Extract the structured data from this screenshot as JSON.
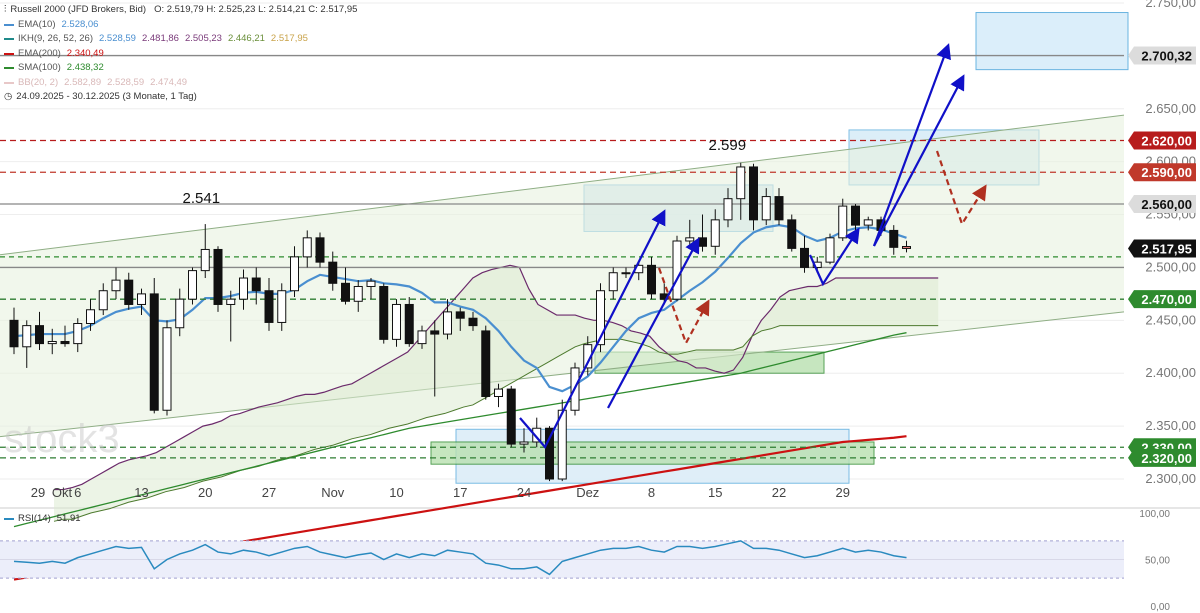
{
  "header": {
    "symbol": "Russell 2000 (JFD Brokers, Bid)",
    "ohlc": "O: 2.519,79  H: 2.525,23  L: 2.514,21  C: 2.517,95",
    "period": "24.09.2025 - 30.12.2025  (3 Monate, 1 Tag)",
    "indicators": [
      {
        "label": "EMA(10)",
        "values": [
          "2.528,06"
        ],
        "color": "#4a8fd0"
      },
      {
        "label": "IKH(9, 26, 52, 26)",
        "values": [
          "2.528,59",
          "2.481,86",
          "2.505,23",
          "2.446,21",
          "2.517,95"
        ],
        "color": "#1f8a8a"
      },
      {
        "label": "EMA(200)",
        "values": [
          "2.340,49"
        ],
        "color": "#cc1111"
      },
      {
        "label": "SMA(100)",
        "values": [
          "2.438,32"
        ],
        "color": "#2e8b2e"
      },
      {
        "label": "BB(20, 2)",
        "values": [
          "2.582,89",
          "2.528,59",
          "2.474,49"
        ],
        "color": "#e8c8c8"
      }
    ]
  },
  "watermark": "stock3",
  "chart_data": {
    "type": "candlestick",
    "y_axis_ticks": [
      "2.750,00",
      "2.700,00",
      "2.650,00",
      "2.600,00",
      "2.550,00",
      "2.500,00",
      "2.450,00",
      "2.400,00",
      "2.350,00",
      "2.300,00"
    ],
    "y_tick_values": [
      2750,
      2700,
      2650,
      2600,
      2550,
      2500,
      2450,
      2400,
      2350,
      2300
    ],
    "ylim": [
      2280,
      2758
    ],
    "x_axis_ticks": [
      "29",
      "Okt",
      "6",
      "13",
      "20",
      "27",
      "Nov",
      "10",
      "17",
      "24",
      "Dez",
      "8",
      "15",
      "22",
      "29"
    ],
    "x_tick_index": [
      0,
      1,
      5,
      10,
      15,
      20,
      25,
      30,
      35,
      40,
      45,
      50,
      55,
      60,
      65
    ],
    "annotations": [
      {
        "text": "2.541",
        "index": 14
      },
      {
        "text": "2.599",
        "index": 54
      }
    ],
    "price_levels": [
      {
        "label": "2.700,32",
        "value": 2700.32,
        "bg": "#dcdcdc",
        "fg": "#111111"
      },
      {
        "label": "2.620,00",
        "value": 2620,
        "bg": "#b71c1c",
        "fg": "#ffffff"
      },
      {
        "label": "2.590,00",
        "value": 2590,
        "bg": "#c0392b",
        "fg": "#ffffff"
      },
      {
        "label": "2.560,00",
        "value": 2560,
        "bg": "#dcdcdc",
        "fg": "#111111"
      },
      {
        "label": "2.517,95",
        "value": 2517.95,
        "bg": "#111111",
        "fg": "#ffffff"
      },
      {
        "label": "2.470,00",
        "value": 2470,
        "bg": "#2e8b2e",
        "fg": "#ffffff"
      },
      {
        "label": "2.330,00",
        "value": 2330,
        "bg": "#2e8b2e",
        "fg": "#ffffff"
      },
      {
        "label": "2.320,00",
        "value": 2320,
        "bg": "#2e8b2e",
        "fg": "#ffffff"
      }
    ],
    "candles": [
      {
        "o": 2450,
        "h": 2462,
        "l": 2418,
        "c": 2425
      },
      {
        "o": 2425,
        "h": 2450,
        "l": 2405,
        "c": 2445
      },
      {
        "o": 2445,
        "h": 2458,
        "l": 2422,
        "c": 2428
      },
      {
        "o": 2428,
        "h": 2442,
        "l": 2418,
        "c": 2430
      },
      {
        "o": 2430,
        "h": 2445,
        "l": 2425,
        "c": 2428
      },
      {
        "o": 2428,
        "h": 2452,
        "l": 2420,
        "c": 2447
      },
      {
        "o": 2447,
        "h": 2470,
        "l": 2440,
        "c": 2460
      },
      {
        "o": 2460,
        "h": 2485,
        "l": 2455,
        "c": 2478
      },
      {
        "o": 2478,
        "h": 2500,
        "l": 2470,
        "c": 2488
      },
      {
        "o": 2488,
        "h": 2495,
        "l": 2460,
        "c": 2465
      },
      {
        "o": 2465,
        "h": 2480,
        "l": 2455,
        "c": 2475
      },
      {
        "o": 2475,
        "h": 2490,
        "l": 2362,
        "c": 2365
      },
      {
        "o": 2365,
        "h": 2450,
        "l": 2360,
        "c": 2443
      },
      {
        "o": 2443,
        "h": 2480,
        "l": 2435,
        "c": 2470
      },
      {
        "o": 2470,
        "h": 2500,
        "l": 2465,
        "c": 2497
      },
      {
        "o": 2497,
        "h": 2541,
        "l": 2490,
        "c": 2517
      },
      {
        "o": 2517,
        "h": 2520,
        "l": 2458,
        "c": 2465
      },
      {
        "o": 2465,
        "h": 2478,
        "l": 2430,
        "c": 2470
      },
      {
        "o": 2470,
        "h": 2498,
        "l": 2460,
        "c": 2490
      },
      {
        "o": 2490,
        "h": 2500,
        "l": 2465,
        "c": 2478
      },
      {
        "o": 2478,
        "h": 2490,
        "l": 2440,
        "c": 2448
      },
      {
        "o": 2448,
        "h": 2485,
        "l": 2440,
        "c": 2478
      },
      {
        "o": 2478,
        "h": 2520,
        "l": 2472,
        "c": 2510
      },
      {
        "o": 2510,
        "h": 2535,
        "l": 2500,
        "c": 2528
      },
      {
        "o": 2528,
        "h": 2533,
        "l": 2500,
        "c": 2505
      },
      {
        "o": 2505,
        "h": 2515,
        "l": 2478,
        "c": 2485
      },
      {
        "o": 2485,
        "h": 2500,
        "l": 2465,
        "c": 2468
      },
      {
        "o": 2468,
        "h": 2488,
        "l": 2458,
        "c": 2482
      },
      {
        "o": 2482,
        "h": 2490,
        "l": 2470,
        "c": 2487
      },
      {
        "o": 2482,
        "h": 2485,
        "l": 2428,
        "c": 2432
      },
      {
        "o": 2432,
        "h": 2470,
        "l": 2425,
        "c": 2465
      },
      {
        "o": 2465,
        "h": 2472,
        "l": 2425,
        "c": 2428
      },
      {
        "o": 2428,
        "h": 2445,
        "l": 2423,
        "c": 2440
      },
      {
        "o": 2440,
        "h": 2450,
        "l": 2378,
        "c": 2437
      },
      {
        "o": 2437,
        "h": 2470,
        "l": 2432,
        "c": 2458
      },
      {
        "o": 2458,
        "h": 2462,
        "l": 2440,
        "c": 2452
      },
      {
        "o": 2452,
        "h": 2458,
        "l": 2440,
        "c": 2445
      },
      {
        "o": 2440,
        "h": 2445,
        "l": 2375,
        "c": 2378
      },
      {
        "o": 2378,
        "h": 2390,
        "l": 2368,
        "c": 2385
      },
      {
        "o": 2385,
        "h": 2388,
        "l": 2330,
        "c": 2333
      },
      {
        "o": 2333,
        "h": 2348,
        "l": 2325,
        "c": 2335
      },
      {
        "o": 2335,
        "h": 2358,
        "l": 2330,
        "c": 2348
      },
      {
        "o": 2348,
        "h": 2350,
        "l": 2298,
        "c": 2300
      },
      {
        "o": 2300,
        "h": 2375,
        "l": 2298,
        "c": 2365
      },
      {
        "o": 2365,
        "h": 2410,
        "l": 2360,
        "c": 2405
      },
      {
        "o": 2405,
        "h": 2435,
        "l": 2398,
        "c": 2427
      },
      {
        "o": 2427,
        "h": 2485,
        "l": 2420,
        "c": 2478
      },
      {
        "o": 2478,
        "h": 2500,
        "l": 2470,
        "c": 2495
      },
      {
        "o": 2495,
        "h": 2500,
        "l": 2490,
        "c": 2495
      },
      {
        "o": 2495,
        "h": 2505,
        "l": 2488,
        "c": 2502
      },
      {
        "o": 2502,
        "h": 2510,
        "l": 2470,
        "c": 2475
      },
      {
        "o": 2475,
        "h": 2485,
        "l": 2465,
        "c": 2470
      },
      {
        "o": 2470,
        "h": 2530,
        "l": 2468,
        "c": 2525
      },
      {
        "o": 2525,
        "h": 2545,
        "l": 2520,
        "c": 2528
      },
      {
        "o": 2528,
        "h": 2550,
        "l": 2515,
        "c": 2520
      },
      {
        "o": 2520,
        "h": 2555,
        "l": 2512,
        "c": 2545
      },
      {
        "o": 2545,
        "h": 2575,
        "l": 2538,
        "c": 2565
      },
      {
        "o": 2565,
        "h": 2599,
        "l": 2545,
        "c": 2595
      },
      {
        "o": 2595,
        "h": 2598,
        "l": 2535,
        "c": 2545
      },
      {
        "o": 2545,
        "h": 2575,
        "l": 2540,
        "c": 2567
      },
      {
        "o": 2567,
        "h": 2575,
        "l": 2540,
        "c": 2545
      },
      {
        "o": 2545,
        "h": 2550,
        "l": 2515,
        "c": 2518
      },
      {
        "o": 2518,
        "h": 2530,
        "l": 2495,
        "c": 2500
      },
      {
        "o": 2500,
        "h": 2510,
        "l": 2495,
        "c": 2505
      },
      {
        "o": 2505,
        "h": 2532,
        "l": 2503,
        "c": 2528
      },
      {
        "o": 2528,
        "h": 2565,
        "l": 2525,
        "c": 2558
      },
      {
        "o": 2558,
        "h": 2560,
        "l": 2535,
        "c": 2540
      },
      {
        "o": 2540,
        "h": 2548,
        "l": 2535,
        "c": 2545
      },
      {
        "o": 2545,
        "h": 2548,
        "l": 2530,
        "c": 2535
      },
      {
        "o": 2535,
        "h": 2540,
        "l": 2512,
        "c": 2519
      },
      {
        "o": 2519.79,
        "h": 2525.23,
        "l": 2514.21,
        "c": 2517.95
      }
    ],
    "ema10": [
      2435,
      2436,
      2437,
      2437,
      2437,
      2440,
      2445,
      2452,
      2458,
      2461,
      2463,
      2450,
      2449,
      2451,
      2460,
      2471,
      2471,
      2473,
      2476,
      2477,
      2475,
      2475,
      2479,
      2487,
      2493,
      2491,
      2489,
      2487,
      2488,
      2485,
      2484,
      2482,
      2476,
      2467,
      2467,
      2463,
      2460,
      2452,
      2440,
      2425,
      2412,
      2405,
      2387,
      2383,
      2389,
      2397,
      2410,
      2425,
      2440,
      2452,
      2457,
      2460,
      2469,
      2478,
      2486,
      2496,
      2509,
      2523,
      2533,
      2538,
      2540,
      2538,
      2530,
      2525,
      2528,
      2534,
      2537,
      2538,
      2536,
      2532,
      2528
    ],
    "ema200": [
      2205,
      2207,
      2209,
      2211,
      2213,
      2215,
      2217,
      2219,
      2221,
      2223,
      2225,
      2227,
      2229,
      2231,
      2233,
      2235,
      2237,
      2239,
      2241,
      2243,
      2245,
      2247,
      2249,
      2251,
      2253,
      2255,
      2257,
      2259,
      2261,
      2263,
      2265,
      2267,
      2269,
      2271,
      2273,
      2275,
      2277,
      2279,
      2281,
      2283,
      2285,
      2287,
      2289,
      2291,
      2293,
      2295,
      2297,
      2299,
      2301,
      2303,
      2305,
      2307,
      2309,
      2311,
      2313,
      2315,
      2317,
      2319,
      2321,
      2323,
      2325,
      2327,
      2329,
      2331,
      2333,
      2335,
      2336,
      2337,
      2338,
      2339,
      2340.49
    ],
    "sma100": [
      2255,
      2258,
      2261,
      2264,
      2267,
      2270,
      2273,
      2276,
      2279,
      2282,
      2285,
      2288,
      2291,
      2294,
      2297,
      2300,
      2303,
      2306,
      2309,
      2312,
      2315,
      2318,
      2321,
      2324,
      2327,
      2330,
      2333,
      2336,
      2339,
      2342,
      2345,
      2348,
      2350,
      2352,
      2354,
      2356,
      2358,
      2360,
      2362,
      2364,
      2366,
      2368,
      2370,
      2372,
      2374,
      2376,
      2378,
      2380,
      2382,
      2384,
      2386,
      2388,
      2390,
      2392,
      2394,
      2396,
      2398,
      2400,
      2403,
      2406,
      2409,
      2412,
      2415,
      2418,
      2421,
      2424,
      2427,
      2430,
      2433,
      2436,
      2438.32
    ],
    "kumo_a": [
      2290,
      2290,
      2292,
      2295,
      2300,
      2305,
      2310,
      2315,
      2318,
      2320,
      2322,
      2325,
      2330,
      2335,
      2340,
      2345,
      2350,
      2352,
      2355,
      2360,
      2362,
      2365,
      2368,
      2370,
      2372,
      2375,
      2378,
      2380,
      2380,
      2382,
      2385,
      2388,
      2390,
      2395,
      2400,
      2405,
      2410,
      2415,
      2420,
      2430,
      2440,
      2450,
      2460,
      2470,
      2480,
      2490,
      2495,
      2498,
      2500,
      2502,
      2500,
      2480,
      2465,
      2460,
      2455,
      2455,
      2455,
      2452,
      2450,
      2450,
      2448,
      2445,
      2440,
      2438,
      2435,
      2425,
      2418,
      2412,
      2410,
      2405,
      2405,
      2402,
      2400,
      2403,
      2415,
      2435,
      2450,
      2460,
      2472,
      2478,
      2480,
      2482,
      2482,
      2485,
      2490,
      2490,
      2490,
      2490,
      2490,
      2490,
      2490,
      2490,
      2490,
      2490,
      2490,
      2490
    ],
    "kumo_b": [
      2260,
      2262,
      2262,
      2265,
      2268,
      2270,
      2272,
      2275,
      2278,
      2280,
      2282,
      2285,
      2288,
      2290,
      2292,
      2295,
      2298,
      2300,
      2302,
      2305,
      2308,
      2310,
      2312,
      2315,
      2318,
      2320,
      2322,
      2325,
      2328,
      2330,
      2332,
      2335,
      2338,
      2340,
      2342,
      2345,
      2348,
      2350,
      2352,
      2355,
      2358,
      2360,
      2362,
      2365,
      2368,
      2370,
      2375,
      2380,
      2385,
      2390,
      2395,
      2400,
      2405,
      2410,
      2415,
      2420,
      2425,
      2428,
      2430,
      2432,
      2432,
      2432,
      2430,
      2428,
      2425,
      2420,
      2418,
      2418,
      2420,
      2422,
      2422,
      2422,
      2422,
      2422,
      2425,
      2435,
      2440,
      2442,
      2445,
      2445,
      2445,
      2445,
      2445,
      2445,
      2445,
      2445,
      2445,
      2445,
      2445,
      2445,
      2445,
      2445,
      2445,
      2445,
      2445,
      2445
    ],
    "rsi": {
      "label": "RSI(14)",
      "value": "51,91",
      "ticks": [
        "100,00",
        "50,00",
        "0,00"
      ],
      "tick_values": [
        100,
        50,
        0
      ],
      "band": [
        30,
        70
      ],
      "values": [
        48,
        47,
        46,
        48,
        46,
        52,
        56,
        60,
        64,
        62,
        63,
        40,
        50,
        56,
        60,
        66,
        58,
        56,
        60,
        58,
        54,
        58,
        62,
        64,
        58,
        55,
        52,
        55,
        57,
        50,
        56,
        52,
        56,
        54,
        60,
        58,
        56,
        46,
        44,
        40,
        40,
        42,
        34,
        48,
        52,
        56,
        60,
        62,
        62,
        64,
        60,
        58,
        64,
        64,
        62,
        64,
        67,
        70,
        62,
        62,
        60,
        56,
        52,
        54,
        58,
        62,
        58,
        60,
        58,
        54,
        52
      ]
    },
    "colors": {
      "up": "#ffffff",
      "down": "#111111",
      "ema10": "#4a8fd0",
      "ema200": "#cc1111",
      "sma100": "#2e8b2e",
      "kumo_line": "#6b2a6b",
      "rsi_line": "#2a8abf"
    }
  }
}
